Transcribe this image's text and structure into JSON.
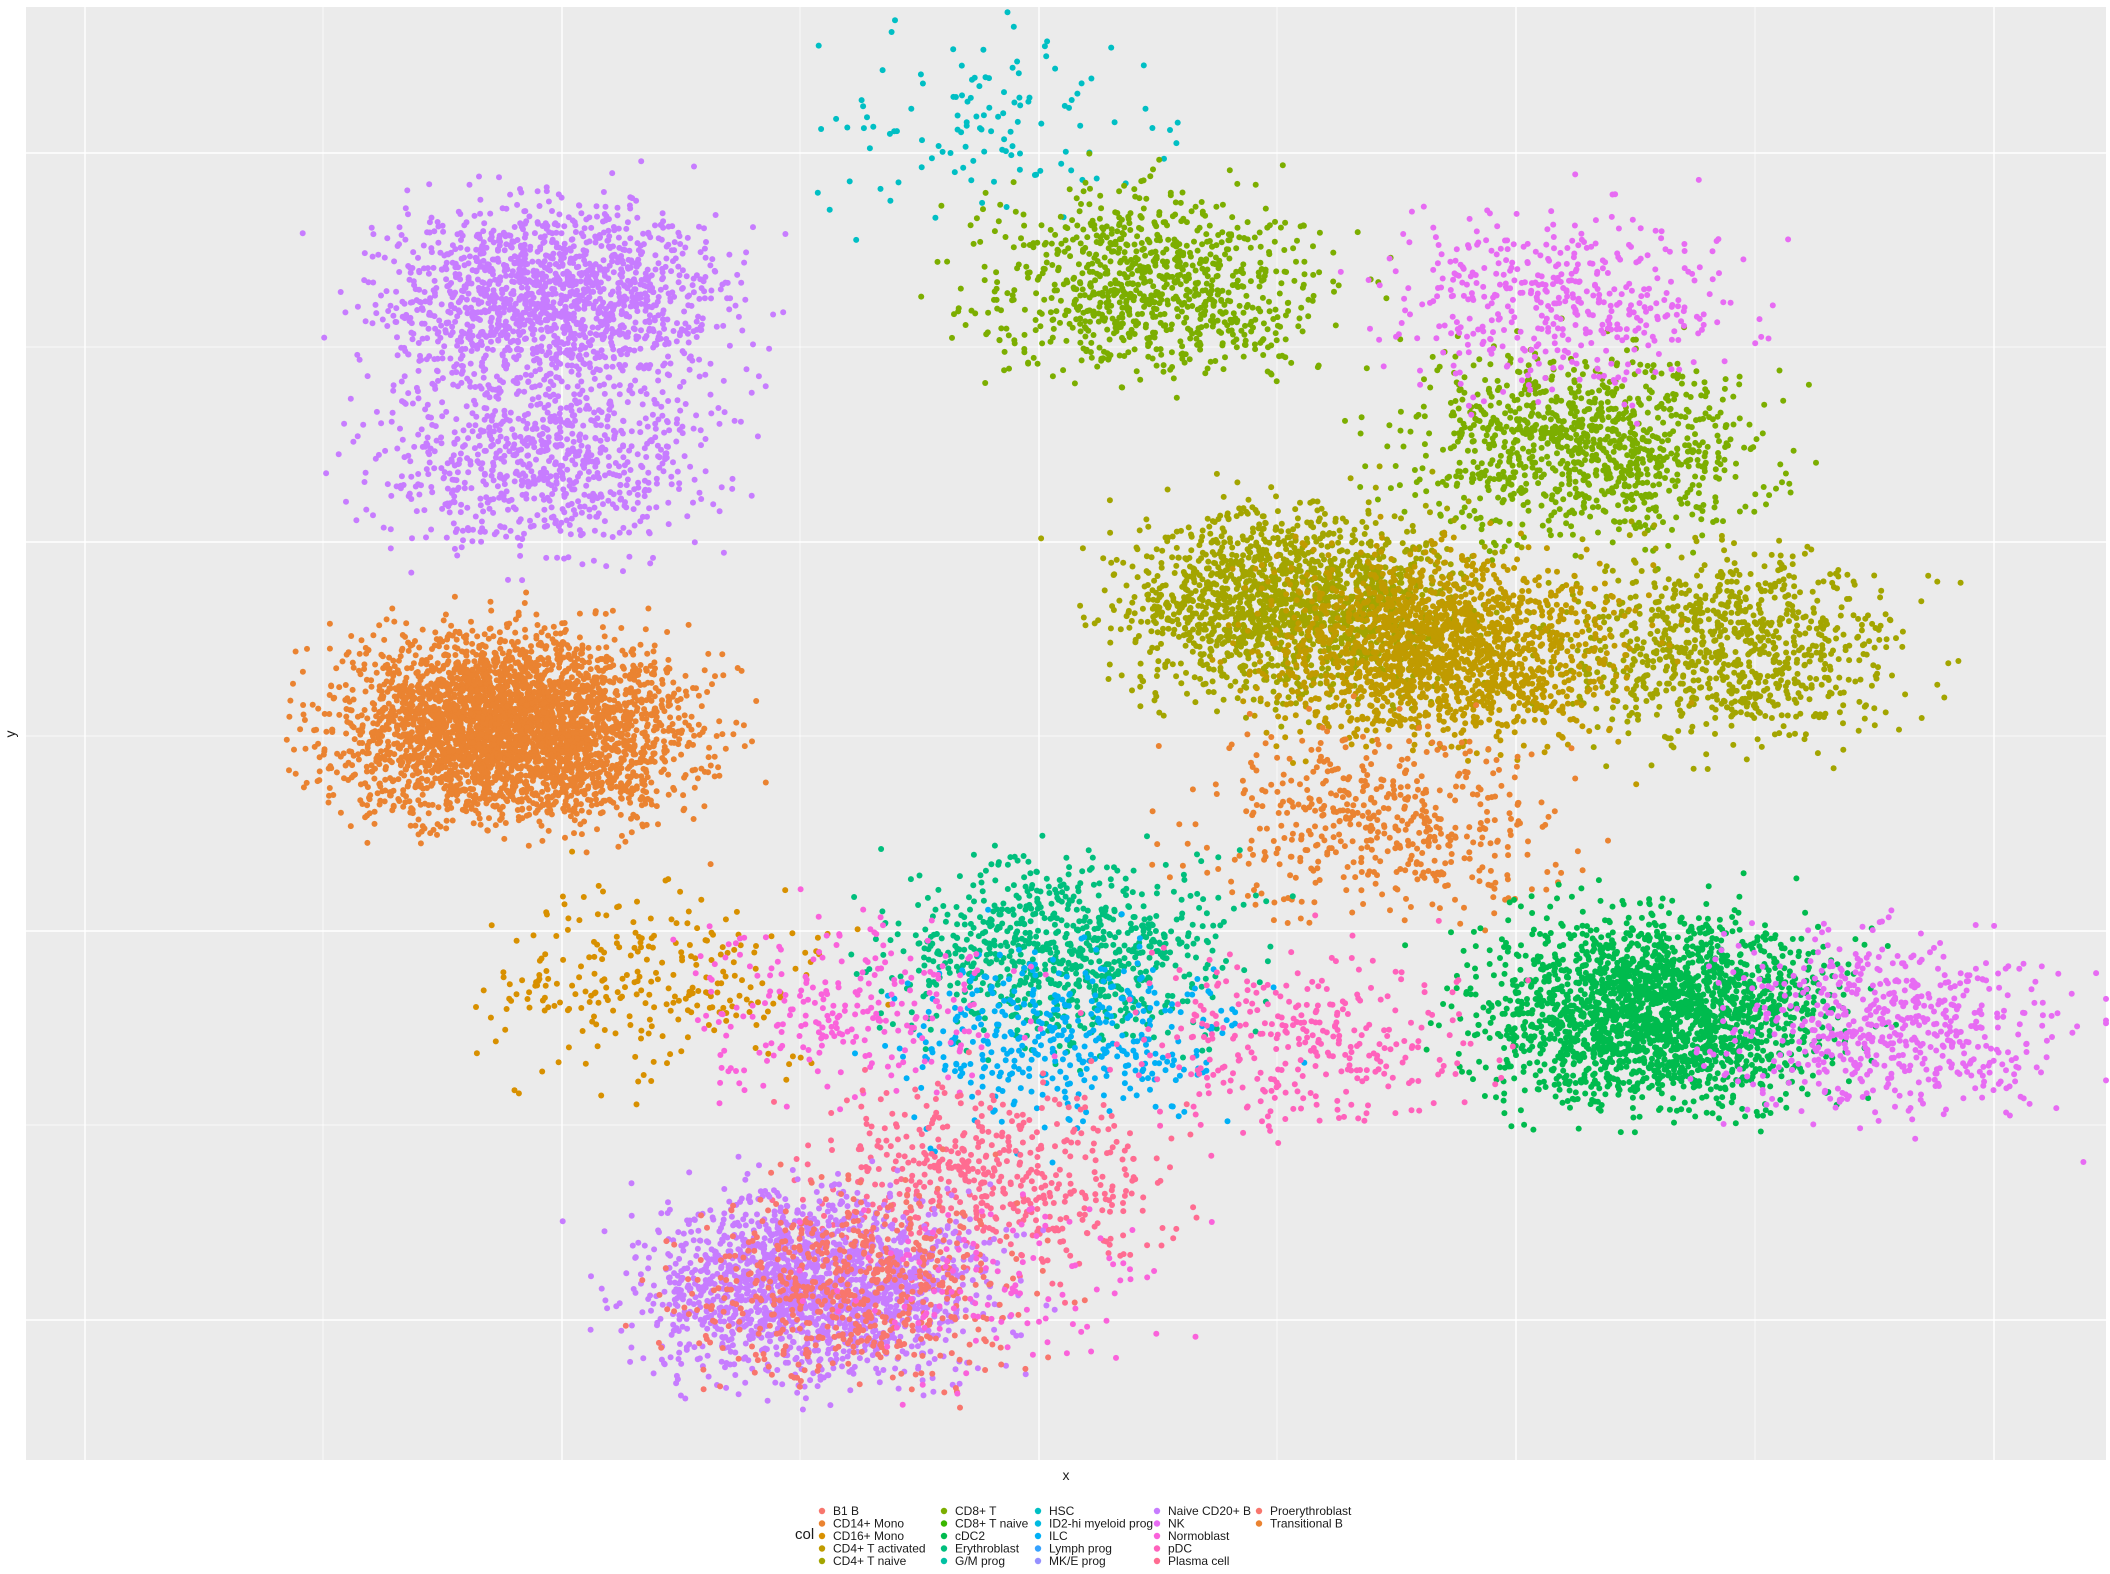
{
  "chart_data": {
    "type": "scatter",
    "title": "",
    "xlabel": "x",
    "ylabel": "y",
    "x_tick_labels": [],
    "y_tick_labels": [],
    "xlim": [
      0,
      1
    ],
    "ylim": [
      0,
      1
    ],
    "grid": true,
    "background": "#EBEBEB",
    "legend": {
      "position": "bottom",
      "title": "col",
      "entries": [
        {
          "label": "B1 B",
          "color": "#F8766D"
        },
        {
          "label": "CD14+ Mono",
          "color": "#EA8331"
        },
        {
          "label": "CD16+ Mono",
          "color": "#D89000"
        },
        {
          "label": "CD4+ T activated",
          "color": "#C09B00"
        },
        {
          "label": "CD4+ T naive",
          "color": "#A3A500"
        },
        {
          "label": "CD8+ T",
          "color": "#7CAE00"
        },
        {
          "label": "CD8+ T naive",
          "color": "#39B600"
        },
        {
          "label": "cDC2",
          "color": "#00BB4E"
        },
        {
          "label": "Erythroblast",
          "color": "#00BF7D"
        },
        {
          "label": "G/M prog",
          "color": "#00C1A3"
        },
        {
          "label": "HSC",
          "color": "#00BFC4"
        },
        {
          "label": "ID2-hi myeloid prog",
          "color": "#00BAE0"
        },
        {
          "label": "ILC",
          "color": "#00B0F6"
        },
        {
          "label": "Lymph prog",
          "color": "#35A2FF"
        },
        {
          "label": "MK/E prog",
          "color": "#9590FF"
        },
        {
          "label": "Naive CD20+ B",
          "color": "#C77CFF"
        },
        {
          "label": "NK",
          "color": "#E76BF3"
        },
        {
          "label": "Normoblast",
          "color": "#FA62DB"
        },
        {
          "label": "pDC",
          "color": "#FF62BC"
        },
        {
          "label": "Plasma cell",
          "color": "#FF6C91"
        },
        {
          "label": "Proerythroblast",
          "color": "#F8766D"
        },
        {
          "label": "Transitional B",
          "color": "#EA8331"
        }
      ]
    },
    "clusters": [
      {
        "name": "CD14+ Mono",
        "x": 0.235,
        "y": 0.505,
        "count": 3400
      },
      {
        "name": "CD16+ Mono",
        "x": 0.3,
        "y": 0.33,
        "count": 260
      },
      {
        "name": "Naive CD20+ B",
        "x": 0.255,
        "y": 0.8,
        "count": 1500
      },
      {
        "name": "Naive CD20+ B",
        "x": 0.25,
        "y": 0.69,
        "count": 800
      },
      {
        "name": "HSC",
        "x": 0.47,
        "y": 0.92,
        "count": 120
      },
      {
        "name": "CD8+ T",
        "x": 0.54,
        "y": 0.81,
        "count": 900
      },
      {
        "name": "CD8+ T",
        "x": 0.75,
        "y": 0.7,
        "count": 1000
      },
      {
        "name": "CD4+ T naive",
        "x": 0.61,
        "y": 0.59,
        "count": 1600
      },
      {
        "name": "CD4+ T naive",
        "x": 0.82,
        "y": 0.56,
        "count": 900
      },
      {
        "name": "CD4+ T activated",
        "x": 0.68,
        "y": 0.56,
        "count": 1700
      },
      {
        "name": "NK",
        "x": 0.74,
        "y": 0.8,
        "count": 450
      },
      {
        "name": "CD14+ Mono",
        "x": 0.65,
        "y": 0.44,
        "count": 500
      },
      {
        "name": "Erythroblast",
        "x": 0.5,
        "y": 0.35,
        "count": 800
      },
      {
        "name": "ILC",
        "x": 0.5,
        "y": 0.29,
        "count": 400
      },
      {
        "name": "Normoblast",
        "x": 0.4,
        "y": 0.31,
        "count": 260
      },
      {
        "name": "cDC2",
        "x": 0.785,
        "y": 0.31,
        "count": 2200
      },
      {
        "name": "NK",
        "x": 0.895,
        "y": 0.3,
        "count": 600
      },
      {
        "name": "pDC",
        "x": 0.615,
        "y": 0.29,
        "count": 320
      },
      {
        "name": "Plasma cell",
        "x": 0.465,
        "y": 0.195,
        "count": 500
      },
      {
        "name": "Naive CD20+ B",
        "x": 0.38,
        "y": 0.12,
        "count": 1700
      },
      {
        "name": "B1 B",
        "x": 0.4,
        "y": 0.12,
        "count": 600
      },
      {
        "name": "Normoblast",
        "x": 0.46,
        "y": 0.12,
        "count": 120
      }
    ]
  }
}
